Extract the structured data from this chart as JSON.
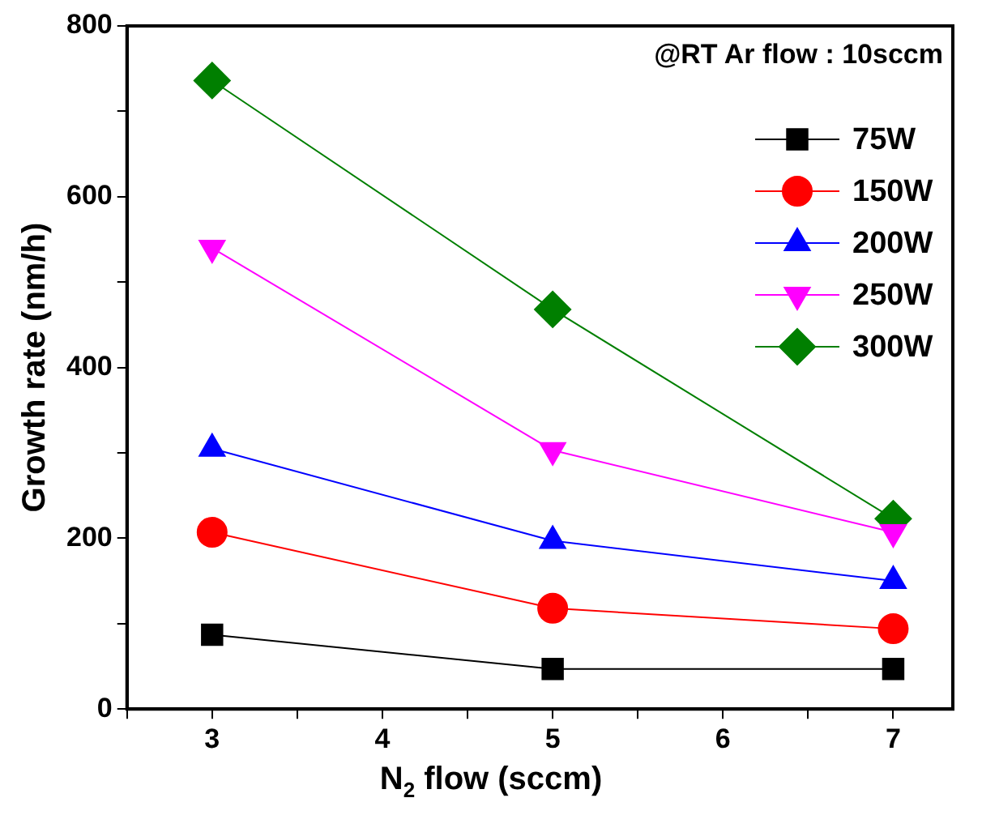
{
  "chart_data": {
    "type": "line",
    "xlabel": "N$_{2}$ flow (sccm)",
    "ylabel": "Growth rate (nm/h)",
    "annotations": [
      "@RT Ar flow : 10sccm"
    ],
    "x": [
      3,
      5,
      7
    ],
    "series": [
      {
        "name": "75W",
        "color": "#000000",
        "marker": "square",
        "values": [
          87,
          47,
          47
        ]
      },
      {
        "name": "150W",
        "color": "#ff0000",
        "marker": "circle",
        "values": [
          207,
          118,
          94
        ]
      },
      {
        "name": "200W",
        "color": "#0000ff",
        "marker": "triangle",
        "values": [
          305,
          197,
          150
        ]
      },
      {
        "name": "250W",
        "color": "#ff00ff",
        "marker": "triangle-down",
        "values": [
          540,
          303,
          207
        ]
      },
      {
        "name": "300W",
        "color": "#007f00",
        "marker": "diamond",
        "values": [
          736,
          468,
          223
        ]
      }
    ],
    "xlim": [
      2.5,
      7.35
    ],
    "xticks": [
      {
        "value": 2.5,
        "label": null
      },
      3,
      {
        "value": 3.5,
        "label": null
      },
      4,
      {
        "value": 4.5,
        "label": null
      },
      5,
      {
        "value": 5.5,
        "label": null
      },
      6,
      {
        "value": 6.5,
        "label": null
      },
      7
    ],
    "ylim": [
      0,
      800
    ],
    "yticks": [
      0,
      {
        "value": 100,
        "label": null
      },
      200,
      {
        "value": 300,
        "label": null
      },
      400,
      {
        "value": 500,
        "label": null
      },
      600,
      {
        "value": 700,
        "label": null
      },
      800
    ],
    "grid": false,
    "legend": "top right",
    "line_style": "solid"
  }
}
